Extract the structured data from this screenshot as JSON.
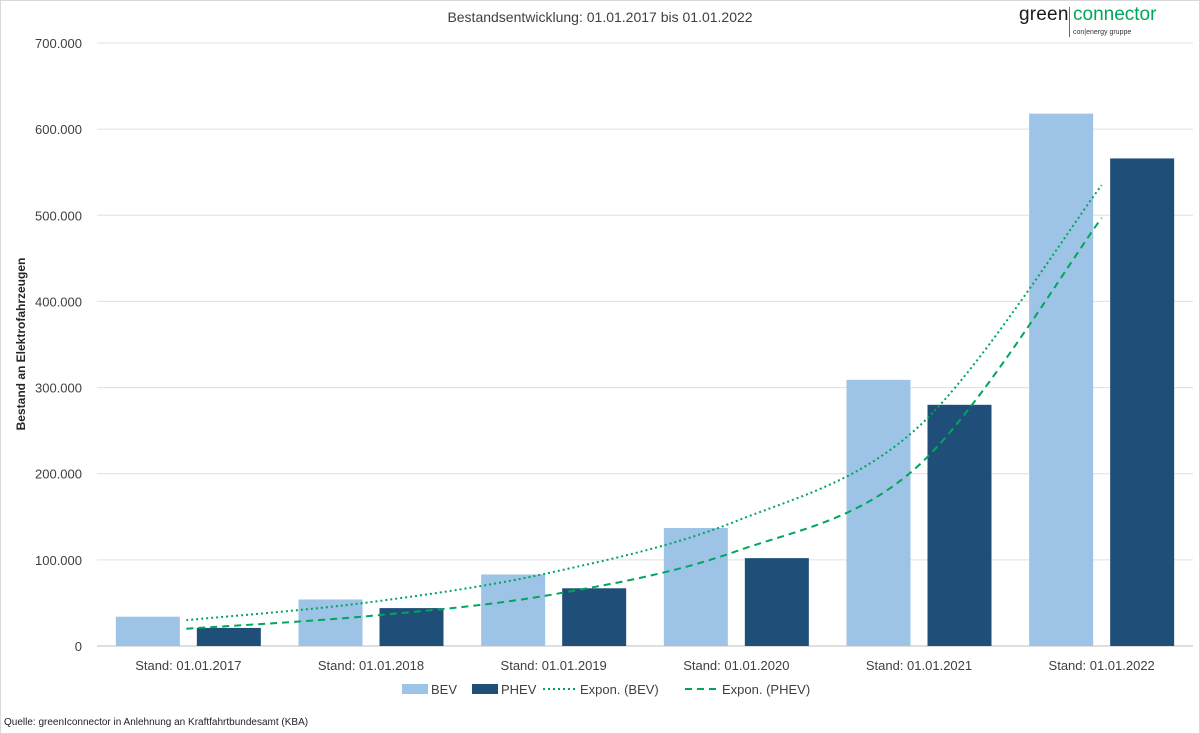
{
  "chart_data": {
    "type": "bar",
    "title": "Bestandsentwicklung: 01.01.2017 bis 01.01.2022",
    "ylabel": "Bestand an Elektrofahrzeugen",
    "xlabel": "",
    "ylim": [
      0,
      700000
    ],
    "yticks": [
      0,
      100000,
      200000,
      300000,
      400000,
      500000,
      600000,
      700000
    ],
    "ytick_labels": [
      "0",
      "100.000",
      "200.000",
      "300.000",
      "400.000",
      "500.000",
      "600.000",
      "700.000"
    ],
    "categories": [
      "Stand: 01.01.2017",
      "Stand: 01.01.2018",
      "Stand: 01.01.2019",
      "Stand: 01.01.2020",
      "Stand: 01.01.2021",
      "Stand: 01.01.2022"
    ],
    "series": [
      {
        "name": "BEV",
        "values": [
          34000,
          54000,
          83000,
          137000,
          309000,
          618000
        ],
        "color": "#9dc3e6"
      },
      {
        "name": "PHEV",
        "values": [
          21000,
          44000,
          67000,
          102000,
          280000,
          566000
        ],
        "color": "#1f4e79"
      }
    ],
    "trendlines": [
      {
        "name": "Expon. (BEV)",
        "series": "BEV",
        "style": "dotted",
        "color": "#00a65a",
        "values": [
          30000,
          51000,
          86000,
          145000,
          255000,
          535000
        ]
      },
      {
        "name": "Expon. (PHEV)",
        "series": "PHEV",
        "style": "dashed",
        "color": "#00a65a",
        "values": [
          20000,
          35000,
          60000,
          110000,
          210000,
          497000
        ]
      }
    ],
    "grid": true,
    "legend_position": "bottom"
  },
  "source_text": "Quelle: greenIconnector in Anlehnung an Kraftfahrtbundesamt (KBA)",
  "logo": {
    "word1": "green",
    "word2": "connector",
    "sub": "con|energy gruppe"
  }
}
